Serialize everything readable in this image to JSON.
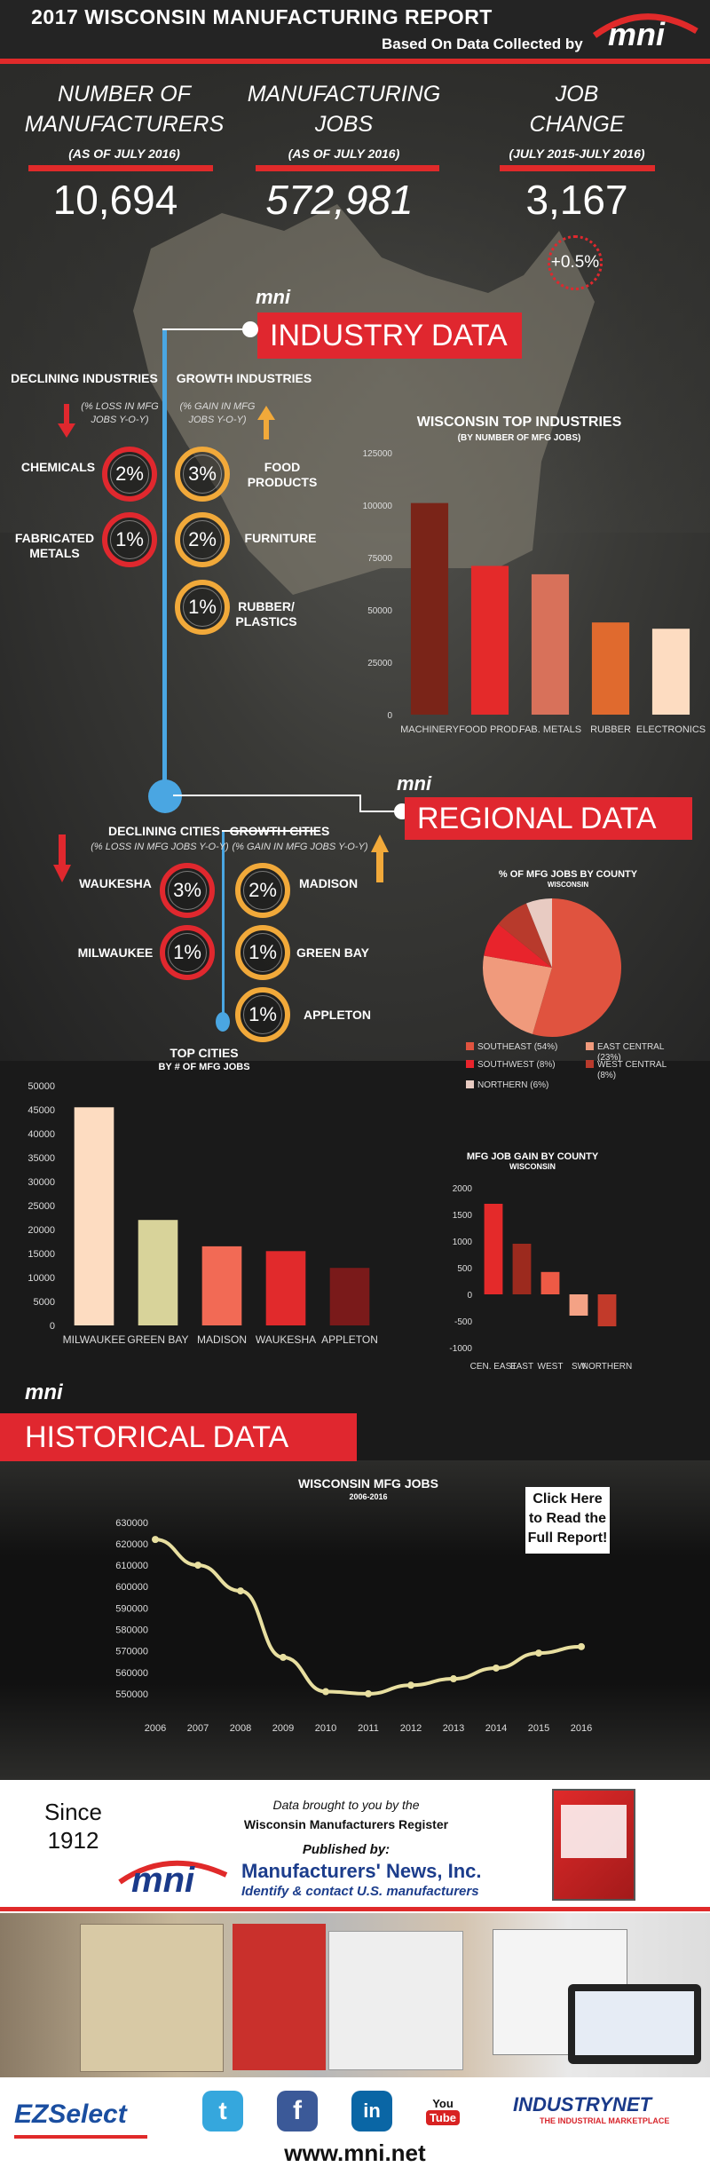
{
  "header": {
    "title": "2017 WISCONSIN MANUFACTURING REPORT",
    "subtitle": "Based On Data Collected by",
    "logo": "mni"
  },
  "stats": [
    {
      "label_l1": "NUMBER OF",
      "label_l2": "MANUFACTURERS",
      "note": "(AS OF JULY 2016)",
      "value": "10,694"
    },
    {
      "label_l1": "MANUFACTURING",
      "label_l2": "JOBS",
      "note": "(AS OF JULY 2016)",
      "value": "572,981"
    },
    {
      "label_l1": "JOB",
      "label_l2": "CHANGE",
      "note": "(JULY 2015-JULY 2016)",
      "value": "3,167",
      "pct": "+0.5%"
    }
  ],
  "industry": {
    "banner": "INDUSTRY DATA",
    "declining_title": "DECLINING INDUSTRIES",
    "declining_note_l1": "(% LOSS IN MFG",
    "declining_note_l2": "JOBS Y-O-Y)",
    "growth_title": "GROWTH INDUSTRIES",
    "growth_note_l1": "(% GAIN IN MFG",
    "growth_note_l2": "JOBS Y-O-Y)",
    "declining": [
      {
        "name_l1": "CHEMICALS",
        "name_l2": "",
        "pct": "2%"
      },
      {
        "name_l1": "FABRICATED",
        "name_l2": "METALS",
        "pct": "1%"
      }
    ],
    "growth": [
      {
        "name_l1": "FOOD",
        "name_l2": "PRODUCTS",
        "pct": "3%"
      },
      {
        "name_l1": "FURNITURE",
        "name_l2": "",
        "pct": "2%"
      },
      {
        "name_l1": "RUBBER/",
        "name_l2": "PLASTICS",
        "pct": "1%"
      }
    ]
  },
  "regional": {
    "banner": "REGIONAL DATA",
    "declining_title": "DECLINING CITIES",
    "declining_note": "(% LOSS IN MFG JOBS Y-O-Y)",
    "growth_title": "GROWTH CITIES",
    "growth_note": "(% GAIN IN MFG JOBS Y-O-Y)",
    "declining": [
      {
        "name": "WAUKESHA",
        "pct": "3%"
      },
      {
        "name": "MILWAUKEE",
        "pct": "1%"
      }
    ],
    "growth": [
      {
        "name": "MADISON",
        "pct": "2%"
      },
      {
        "name": "GREEN BAY",
        "pct": "1%"
      },
      {
        "name": "APPLETON",
        "pct": "1%"
      }
    ]
  },
  "historical": {
    "banner": "HISTORICAL DATA",
    "cta_l1": "Click Here",
    "cta_l2": "to Read the",
    "cta_l3": "Full Report!"
  },
  "chart_data": [
    {
      "type": "bar",
      "title": "WISCONSIN TOP INDUSTRIES",
      "subtitle": "(BY NUMBER OF MFG JOBS)",
      "categories": [
        "MACHINERY",
        "FOOD PROD.",
        "FAB. METALS",
        "RUBBER",
        "ELECTRONICS"
      ],
      "values": [
        101000,
        71000,
        67000,
        44000,
        41000
      ],
      "colors": [
        "#7a2418",
        "#e42a2a",
        "#d8715a",
        "#e06a2e",
        "#fddcc1"
      ],
      "yticks": [
        0,
        25000,
        50000,
        75000,
        100000,
        125000
      ],
      "ylim": [
        0,
        125000
      ]
    },
    {
      "type": "pie",
      "title": "% OF MFG JOBS BY COUNTY",
      "subtitle": "WISCONSIN",
      "slices": [
        {
          "label": "SOUTHEAST (54%)",
          "value": 54,
          "color": "#e0533f"
        },
        {
          "label": "EAST CENTRAL (23%)",
          "value": 23,
          "color": "#f09a7c"
        },
        {
          "label": "SOUTHWEST (8%)",
          "value": 8,
          "color": "#e8242c"
        },
        {
          "label": "WEST CENTRAL (8%)",
          "value": 8,
          "color": "#b83a2c"
        },
        {
          "label": "NORTHERN (6%)",
          "value": 6,
          "color": "#e8cbc2"
        }
      ]
    },
    {
      "type": "bar",
      "title": "TOP CITIES",
      "subtitle": "BY # OF MFG JOBS",
      "categories": [
        "MILWAUKEE",
        "GREEN BAY",
        "MADISON",
        "WAUKESHA",
        "APPLETON"
      ],
      "values": [
        45500,
        22000,
        16500,
        15500,
        12000
      ],
      "colors": [
        "#fddcc1",
        "#d8d39a",
        "#f26a55",
        "#e12a2c",
        "#7a1a1a"
      ],
      "yticks": [
        0,
        5000,
        10000,
        15000,
        20000,
        25000,
        30000,
        35000,
        40000,
        45000,
        50000
      ],
      "ylim": [
        0,
        50000
      ]
    },
    {
      "type": "bar",
      "title": "MFG JOB GAIN BY COUNTY",
      "subtitle": "WISCONSIN",
      "categories": [
        "CEN. EAST",
        "EAST",
        "WEST",
        "SW",
        "NORTHERN"
      ],
      "tick_labels_drawn": [
        "CEN. EAST",
        "EAST",
        "WEST",
        "SW",
        "NORTHERN"
      ],
      "values": [
        1700,
        950,
        420,
        -400,
        -600
      ],
      "colors": [
        "#e42a2a",
        "#9c2a1e",
        "#ee5a45",
        "#f4a285",
        "#c23a2a"
      ],
      "yticks": [
        -1000,
        -500,
        0,
        500,
        1000,
        1500,
        2000
      ],
      "ylim": [
        -1000,
        2000
      ]
    },
    {
      "type": "line",
      "title": "WISCONSIN MFG JOBS",
      "subtitle": "2006-2016",
      "x": [
        "2006",
        "2007",
        "2008",
        "2009",
        "2010",
        "2011",
        "2012",
        "2013",
        "2014",
        "2015",
        "2016"
      ],
      "values": [
        622000,
        610000,
        598000,
        567000,
        551000,
        550000,
        554000,
        557000,
        562000,
        569000,
        572000
      ],
      "yticks": [
        550000,
        560000,
        570000,
        580000,
        590000,
        600000,
        610000,
        620000,
        630000
      ],
      "ylim": [
        545000,
        632000
      ],
      "color": "#e8dfa0"
    }
  ],
  "footer": {
    "since_l1": "Since",
    "since_l2": "1912",
    "brought_l1": "Data brought to you by the",
    "brought_l2": "Wisconsin Manufacturers Register",
    "published": "Published by:",
    "company": "Manufacturers' News, Inc.",
    "tagline": "Identify & contact U.S. manufacturers",
    "ezselect": "EZSelect",
    "industrynet": "INDUSTRYNET",
    "industrynet_sub": "THE INDUSTRIAL MARKETPLACE",
    "url": "www.mni.net",
    "social": [
      "twitter",
      "facebook",
      "linkedin",
      "youtube"
    ]
  }
}
